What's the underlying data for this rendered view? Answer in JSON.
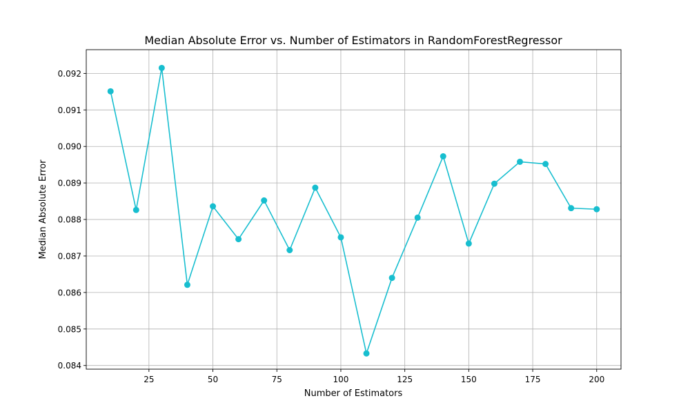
{
  "chart_data": {
    "type": "line",
    "title": "Median Absolute Error vs. Number of Estimators in RandomForestRegressor",
    "xlabel": "Number of Estimators",
    "ylabel": "Median Absolute Error",
    "x": [
      10,
      20,
      30,
      40,
      50,
      60,
      70,
      80,
      90,
      100,
      110,
      120,
      130,
      140,
      150,
      160,
      170,
      180,
      190,
      200
    ],
    "series": [
      {
        "values": [
          0.09151,
          0.08826,
          0.09215,
          0.08621,
          0.08836,
          0.08746,
          0.08852,
          0.08716,
          0.08887,
          0.08751,
          0.08433,
          0.0864,
          0.08805,
          0.08973,
          0.08734,
          0.08898,
          0.08958,
          0.08952,
          0.08831,
          0.08828
        ],
        "color": "#17becf",
        "marker": "circle"
      }
    ],
    "xlim": [
      0.5,
      209.5
    ],
    "ylim": [
      0.0839,
      0.09265
    ],
    "xticks": [
      25,
      50,
      75,
      100,
      125,
      150,
      175,
      200
    ],
    "xtick_labels": [
      "25",
      "50",
      "75",
      "100",
      "125",
      "150",
      "175",
      "200"
    ],
    "yticks": [
      0.084,
      0.085,
      0.086,
      0.087,
      0.088,
      0.089,
      0.09,
      0.091,
      0.092
    ],
    "ytick_labels": [
      "0.084",
      "0.085",
      "0.086",
      "0.087",
      "0.088",
      "0.089",
      "0.090",
      "0.091",
      "0.092"
    ],
    "grid": true,
    "legend": "none"
  }
}
